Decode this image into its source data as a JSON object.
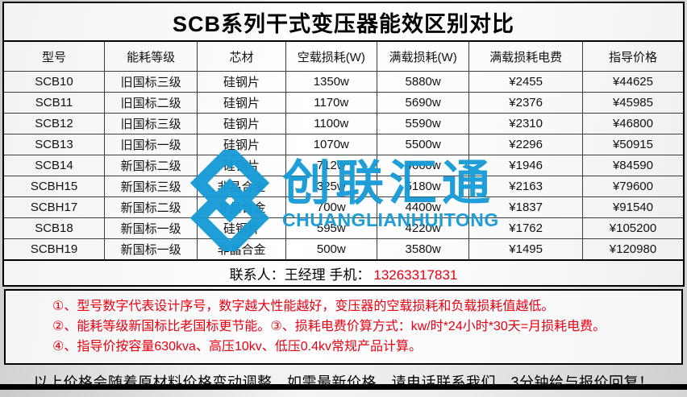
{
  "title": "SCB系列干式变压器能效区别对比",
  "table": {
    "headers": [
      "型号",
      "能耗等级",
      "芯材",
      "空载损耗(W)",
      "满载损耗(W)",
      "满载损耗电费",
      "指导价格"
    ],
    "rows": [
      [
        "SCB10",
        "旧国标三级",
        "硅钢片",
        "1350w",
        "5880w",
        "¥2455",
        "¥44625"
      ],
      [
        "SCB11",
        "旧国标二级",
        "硅钢片",
        "1170w",
        "5690w",
        "¥2376",
        "¥45985"
      ],
      [
        "SCB12",
        "旧国标三级",
        "硅钢片",
        "1100w",
        "5590w",
        "¥2310",
        "¥46800"
      ],
      [
        "SCB13",
        "旧国标一级",
        "硅钢片",
        "1070w",
        "5500w",
        "¥2296",
        "¥50915"
      ],
      [
        "SCB14",
        "新国标二级",
        "硅钢片",
        "712w",
        "4660w",
        "¥1946",
        "¥84590"
      ],
      [
        "SCBH15",
        "新国标三级",
        "非晶合金",
        "325w",
        "5180w",
        "¥2163",
        "¥79600"
      ],
      [
        "SCBH17",
        "新国标二级",
        "非晶合金",
        "700w",
        "4400w",
        "¥1837",
        "¥91540"
      ],
      [
        "SCB18",
        "新国标一级",
        "硅钢片",
        "595w",
        "4220w",
        "¥1762",
        "¥105200"
      ],
      [
        "SCBH19",
        "新国标一级",
        "非晶合金",
        "500w",
        "3580w",
        "¥1495",
        "¥120980"
      ]
    ]
  },
  "contact": {
    "prefix": "联系人：王经理  手机：",
    "phone": "13263317831"
  },
  "notes": [
    "①、型号数字代表设计序号，数字越大性能越好，变压器的空载损耗和负载损耗值越低。",
    "②、能耗等级新国标比老国标更节能。③、损耗电费价算方式：kw/时*24小时*30天=月损耗电费。",
    "④、指导价按容量630kva、高压10kv、低压0.4kv常规产品计算。"
  ],
  "footer": "以上价格会随着原材料价格变动调整，如需最新价格，请电话联系我们，3分钟给与报价回复！",
  "watermark": {
    "cn": "创联汇通",
    "en": "CHUANGLIANHUITONG",
    "color": "#179bd7"
  },
  "colors": {
    "note_red": "#e60012",
    "logo_blue": "#179bd7"
  }
}
